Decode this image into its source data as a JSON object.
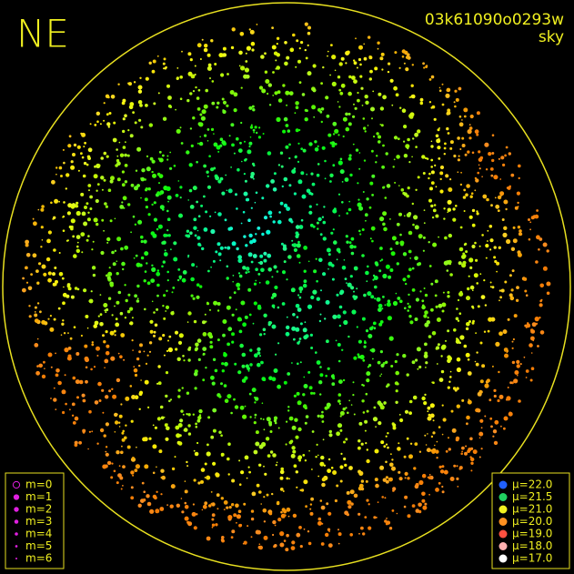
{
  "header": {
    "direction": "NE",
    "image_id": "03k61090o0293w",
    "mode": "sky"
  },
  "magnitude_legend": {
    "items": [
      "m=0",
      "m=1",
      "m=2",
      "m=3",
      "m=4",
      "m=5",
      "m=6"
    ],
    "color": "#e020e0"
  },
  "brightness_legend": {
    "items": [
      {
        "label": "μ=22.0",
        "color": "#2060ff"
      },
      {
        "label": "μ=21.5",
        "color": "#20d060"
      },
      {
        "label": "μ=21.0",
        "color": "#f0f020"
      },
      {
        "label": "μ=20.0",
        "color": "#ff9020"
      },
      {
        "label": "μ=19.0",
        "color": "#ff5040"
      },
      {
        "label": "μ=18.0",
        "color": "#ffb0b0"
      },
      {
        "label": "μ=17.0",
        "color": "#ffffff"
      }
    ]
  }
}
